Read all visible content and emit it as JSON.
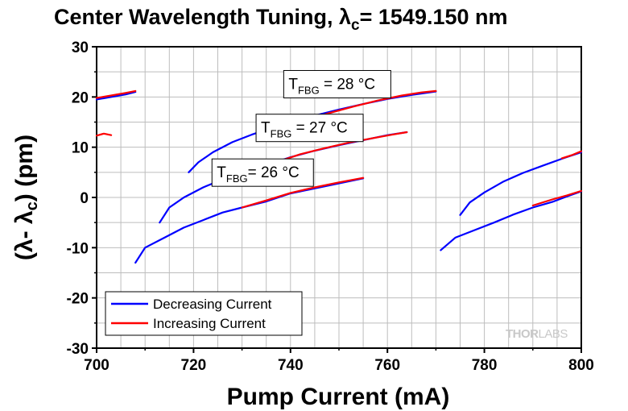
{
  "chart_data": {
    "type": "line",
    "title_text": "Center Wavelength Tuning, ",
    "title_symbol": "λ",
    "title_subscript": "c",
    "title_value": "= 1549.150 nm",
    "xlabel": "Pump Current (mA)",
    "ylabel_open": "(λ- λ",
    "ylabel_sub": "c",
    "ylabel_close": ") (pm)",
    "xlim": [
      700,
      800
    ],
    "ylim": [
      -30,
      30
    ],
    "xticks": [
      700,
      720,
      740,
      760,
      780,
      800
    ],
    "yticks": [
      30,
      20,
      10,
      0,
      -10,
      -20,
      -30
    ],
    "grid": true,
    "legend_position": "bottom-left",
    "series": [
      {
        "name": "Decreasing Current",
        "color": "#0000ff"
      },
      {
        "name": "Increasing Current",
        "color": "#ff0000"
      }
    ],
    "annotations": [
      {
        "pre": "T",
        "sub": "FBG",
        "post": " = 28 °C",
        "x": 738.6,
        "y": 21.1
      },
      {
        "pre": "T",
        "sub": "FBG",
        "post": " = 27 °C",
        "x": 732.9,
        "y": 12.4
      },
      {
        "pre": "T",
        "sub": "FBG",
        "post": "= 26 °C",
        "x": 723.8,
        "y": 3.5
      }
    ],
    "watermark_thor": "THOR",
    "watermark_labs": "LABS",
    "curves": [
      {
        "color": "#0000ff",
        "points": [
          [
            700,
            19.5
          ],
          [
            703,
            20.0
          ],
          [
            706,
            20.5
          ],
          [
            708,
            21.0
          ]
        ]
      },
      {
        "color": "#ff0000",
        "points": [
          [
            700,
            19.8
          ],
          [
            703,
            20.3
          ],
          [
            706,
            20.8
          ],
          [
            708,
            21.2
          ]
        ]
      },
      {
        "color": "#ff0000",
        "points": [
          [
            700,
            12.3
          ],
          [
            701.5,
            12.7
          ],
          [
            703,
            12.4
          ]
        ]
      },
      {
        "color": "#0000ff",
        "points": [
          [
            719,
            5
          ],
          [
            721,
            7
          ],
          [
            724,
            9
          ],
          [
            728,
            11
          ],
          [
            732,
            12.5
          ],
          [
            736,
            13.8
          ],
          [
            740,
            15
          ],
          [
            745,
            16.3
          ],
          [
            750,
            17.5
          ],
          [
            755,
            18.6
          ],
          [
            760,
            19.6
          ],
          [
            765,
            20.4
          ],
          [
            770,
            21.1
          ]
        ]
      },
      {
        "color": "#ff0000",
        "points": [
          [
            743,
            15.3
          ],
          [
            748,
            16.8
          ],
          [
            753,
            18.1
          ],
          [
            758,
            19.3
          ],
          [
            763,
            20.3
          ],
          [
            767,
            20.9
          ],
          [
            770,
            21.2
          ]
        ]
      },
      {
        "color": "#0000ff",
        "points": [
          [
            713,
            -5
          ],
          [
            715,
            -2
          ],
          [
            718,
            0
          ],
          [
            722,
            2
          ],
          [
            726,
            3.6
          ],
          [
            730,
            5
          ],
          [
            735,
            6.4
          ],
          [
            740,
            8
          ],
          [
            745,
            9.3
          ],
          [
            750,
            10.4
          ],
          [
            755,
            11.4
          ],
          [
            760,
            12.4
          ],
          [
            764,
            13
          ]
        ]
      },
      {
        "color": "#ff0000",
        "points": [
          [
            737,
            7
          ],
          [
            742,
            8.6
          ],
          [
            747,
            9.8
          ],
          [
            752,
            10.9
          ],
          [
            757,
            11.8
          ],
          [
            761,
            12.5
          ],
          [
            764,
            13
          ]
        ]
      },
      {
        "color": "#0000ff",
        "points": [
          [
            708,
            -13
          ],
          [
            710,
            -10
          ],
          [
            714,
            -8
          ],
          [
            718,
            -6
          ],
          [
            722,
            -4.5
          ],
          [
            726,
            -3
          ],
          [
            730,
            -2
          ],
          [
            735,
            -0.8
          ],
          [
            740,
            0.8
          ],
          [
            745,
            1.8
          ],
          [
            750,
            2.8
          ],
          [
            755,
            3.8
          ]
        ]
      },
      {
        "color": "#ff0000",
        "points": [
          [
            730,
            -2
          ],
          [
            735,
            -0.6
          ],
          [
            740,
            0.9
          ],
          [
            745,
            2
          ],
          [
            750,
            3
          ],
          [
            755,
            3.9
          ]
        ]
      },
      {
        "color": "#0000ff",
        "points": [
          [
            775,
            -3.5
          ],
          [
            777,
            -1
          ],
          [
            780,
            1
          ],
          [
            784,
            3.2
          ],
          [
            788,
            4.9
          ],
          [
            792,
            6.3
          ],
          [
            796,
            7.7
          ],
          [
            800,
            9
          ]
        ]
      },
      {
        "color": "#ff0000",
        "points": [
          [
            796,
            7.8
          ],
          [
            798,
            8.4
          ],
          [
            800,
            9.2
          ]
        ]
      },
      {
        "color": "#0000ff",
        "points": [
          [
            771,
            -10.5
          ],
          [
            774,
            -8
          ],
          [
            778,
            -6.5
          ],
          [
            782,
            -5
          ],
          [
            786,
            -3.4
          ],
          [
            790,
            -2
          ],
          [
            794,
            -0.9
          ],
          [
            797,
            0.2
          ],
          [
            800,
            1.2
          ]
        ]
      },
      {
        "color": "#ff0000",
        "points": [
          [
            790,
            -1.6
          ],
          [
            794,
            -0.4
          ],
          [
            797,
            0.4
          ],
          [
            800,
            1.3
          ]
        ]
      }
    ]
  }
}
